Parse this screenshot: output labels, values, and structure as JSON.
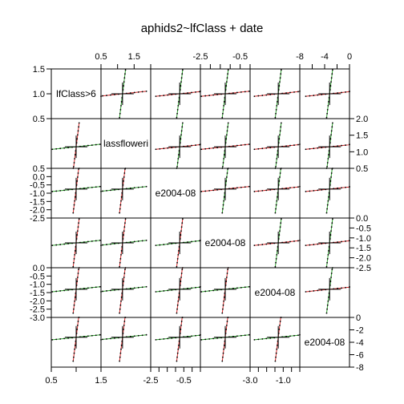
{
  "chart_data": {
    "type": "scatter",
    "plot_kind": "pairs plot of fixed-effect estimates (profile traces)",
    "title": "aphids2~lfClass + date",
    "variables": [
      "lfClass>6",
      "lassfloweri",
      "e2004-08",
      "e2004-08",
      "e2004-08",
      "e2004-08"
    ],
    "panel_ranges": [
      {
        "lim": [
          0.5,
          1.5
        ],
        "ticks": [
          0.5,
          1.0,
          1.5
        ],
        "tick_labels_top_bottom": [
          "0.5",
          "1.5"
        ],
        "tick_labels_side": [
          "0.5",
          "1.0",
          "1.5"
        ]
      },
      {
        "lim": [
          0.5,
          2.0
        ],
        "ticks": [
          0.5,
          1.0,
          1.5,
          2.0
        ],
        "tick_labels_top_bottom": [
          "0.5",
          "1.5"
        ],
        "tick_labels_side": [
          "0.5",
          "1.0",
          "1.5",
          "2.0"
        ]
      },
      {
        "lim": [
          -2.5,
          0.5
        ],
        "ticks": [
          -2.5,
          -2.0,
          -1.5,
          -1.0,
          -0.5,
          0.0,
          0.5
        ],
        "tick_labels_top_bottom": [
          "-2.5",
          "-0.5"
        ],
        "tick_labels_side": [
          "-2.5",
          "-2.0",
          "-1.5",
          "-1.0",
          "-0.5",
          "0.0",
          "0.5"
        ]
      },
      {
        "lim": [
          -2.5,
          0.0
        ],
        "ticks": [
          -2.5,
          -2.0,
          -1.5,
          -1.0,
          -0.5,
          0.0
        ],
        "tick_labels_top_bottom": [
          "-2.5",
          "-0.5"
        ],
        "tick_labels_side": [
          "-2.5",
          "-2.0",
          "-1.5",
          "-1.0",
          "-0.5",
          "0.0"
        ]
      },
      {
        "lim": [
          -3.0,
          0.0
        ],
        "ticks": [
          -3.0,
          -2.5,
          -2.0,
          -1.5,
          -1.0,
          -0.5,
          0.0
        ],
        "tick_labels_top_bottom": [
          "-3.0",
          "-1.0"
        ],
        "tick_labels_side": [
          "-3.0",
          "-2.5",
          "-2.0",
          "-1.5",
          "-1.0",
          "-0.5",
          "0.0"
        ]
      },
      {
        "lim": [
          -8,
          0
        ],
        "ticks": [
          -8,
          -6,
          -4,
          -2,
          0
        ],
        "tick_labels_top_bottom": [
          "-8",
          "-4",
          "0"
        ],
        "tick_labels_side": [
          "-8",
          "-6",
          "-4",
          "-2",
          "0"
        ]
      }
    ],
    "estimates": [
      1.0,
      1.15,
      -0.75,
      -1.25,
      -1.3,
      -3.2
    ],
    "series": [
      {
        "name": "",
        "color": "#d62728"
      },
      {
        "name": "",
        "color": "#2ca02c"
      }
    ],
    "grid": false,
    "legend": "none"
  }
}
